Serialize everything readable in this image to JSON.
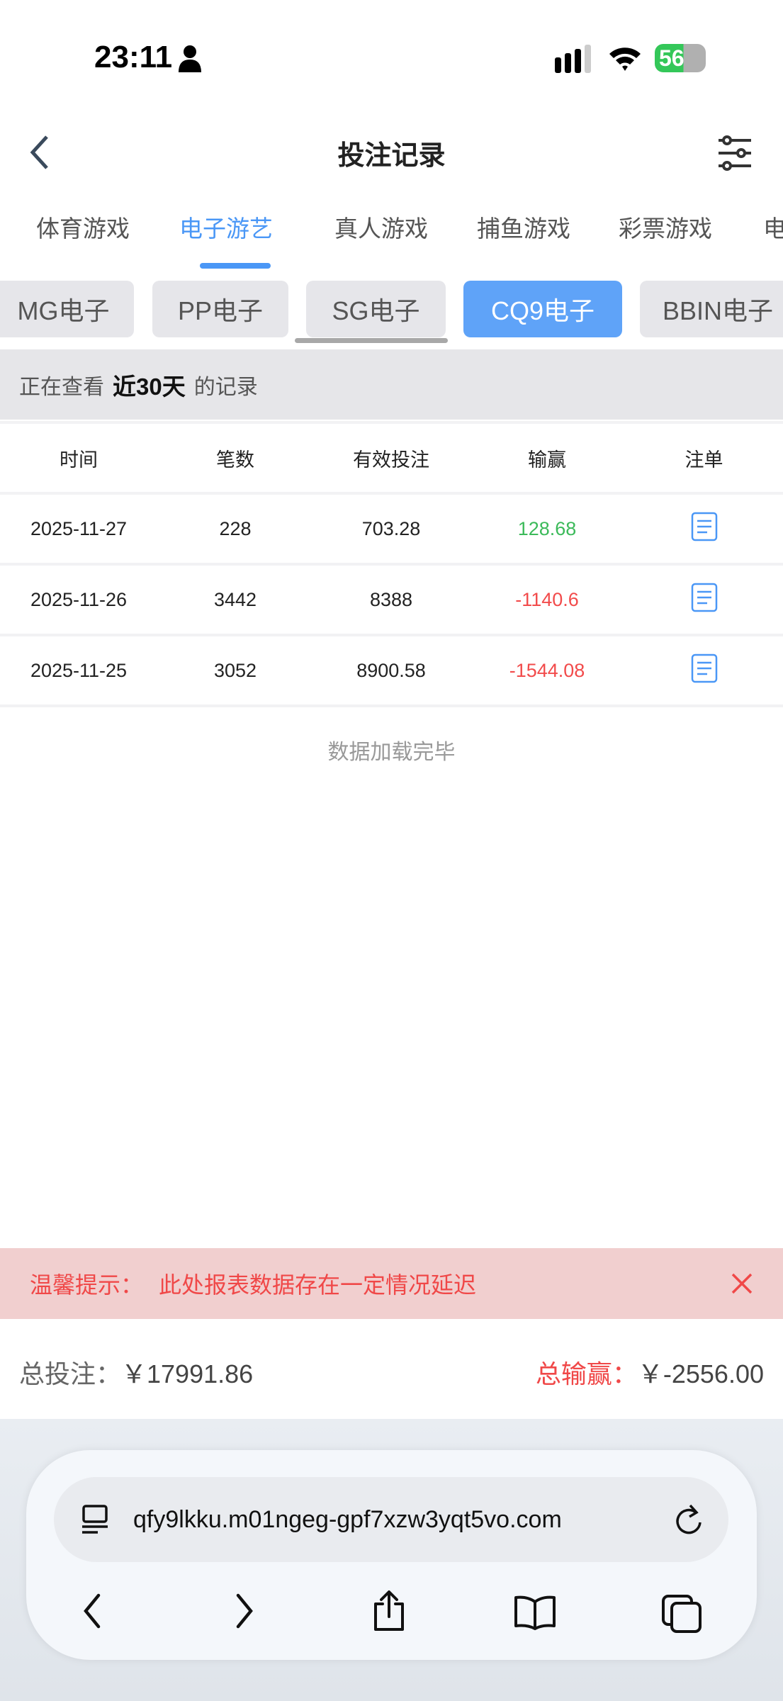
{
  "status_bar": {
    "time": "23:11",
    "battery": "56"
  },
  "header": {
    "title": "投注记录"
  },
  "tabs": [
    {
      "label": "体育游戏"
    },
    {
      "label": "电子游艺",
      "active": true
    },
    {
      "label": "真人游戏"
    },
    {
      "label": "捕鱼游戏"
    },
    {
      "label": "彩票游戏"
    },
    {
      "label": "电"
    }
  ],
  "subtabs": [
    {
      "label": "MG电子"
    },
    {
      "label": "PP电子"
    },
    {
      "label": "SG电子"
    },
    {
      "label": "CQ9电子",
      "active": true
    },
    {
      "label": "BBIN电子"
    }
  ],
  "info": {
    "prefix": "正在查看",
    "range": "近30天",
    "suffix": "的记录"
  },
  "table": {
    "headers": [
      "时间",
      "笔数",
      "有效投注",
      "输赢",
      "注单"
    ],
    "rows": [
      [
        "2025-11-27",
        "228",
        "703.28",
        "128.68"
      ],
      [
        "2025-11-26",
        "3442",
        "8388",
        "-1140.6"
      ],
      [
        "2025-11-25",
        "3052",
        "8900.58",
        "-1544.08"
      ]
    ]
  },
  "loaded_text": "数据加载完毕",
  "banner": {
    "label": "温馨提示：",
    "text": "此处报表数据存在一定情况延迟"
  },
  "totals": {
    "bet_label": "总投注：",
    "bet_value": "￥17991.86",
    "win_label": "总输赢：",
    "win_value": "￥-2556.00"
  },
  "browser": {
    "url": "qfy9lkku.m01ngeg-gpf7xzw3yqt5vo.com"
  },
  "colors": {
    "accent": "#4a97f6",
    "positive": "#3cba5a",
    "negative": "#f24b4b"
  }
}
